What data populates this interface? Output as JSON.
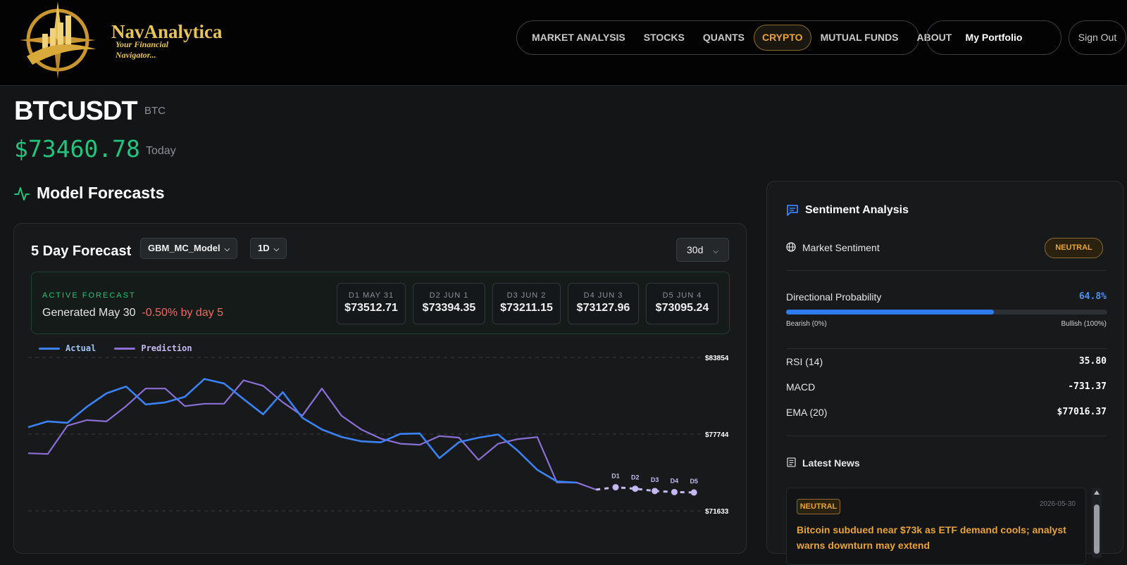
{
  "brand": {
    "name": "NavAnalytica",
    "tagline": "Your Financial Navigator..."
  },
  "nav": {
    "items": [
      "MARKET ANALYSIS",
      "STOCKS",
      "QUANTS",
      "CRYPTO",
      "MUTUAL FUNDS",
      "ABOUT"
    ],
    "active": "CRYPTO",
    "portfolio": "My Portfolio",
    "signout": "Sign Out"
  },
  "asset": {
    "symbol": "BTCUSDT",
    "base": "BTC",
    "price": "$73460.78",
    "price_label": "Today"
  },
  "forecasts": {
    "section_title": "Model Forecasts",
    "card_title": "5 Day Forecast",
    "model": "GBM_MC_Model",
    "interval": "1D",
    "range": "30d",
    "active_label": "ACTIVE FORECAST",
    "generated": "Generated May 30",
    "change": "-0.50% by day 5",
    "days": [
      {
        "label": "D1 MAY 31",
        "value": "$73512.71"
      },
      {
        "label": "D2 JUN 1",
        "value": "$73394.35"
      },
      {
        "label": "D3 JUN 2",
        "value": "$73211.15"
      },
      {
        "label": "D4 JUN 3",
        "value": "$73127.96"
      },
      {
        "label": "D5 JUN 4",
        "value": "$73095.24"
      }
    ],
    "legend": {
      "actual": "Actual",
      "prediction": "Prediction"
    }
  },
  "colors": {
    "actual": "#3b82f6",
    "prediction": "#8b6fd6",
    "forecast_points": "#c6b8f2",
    "positive": "#22c47e",
    "negative": "#f06a63",
    "accent": "#e8a33a"
  },
  "chart_data": {
    "type": "line",
    "y_ticks": [
      "$83854",
      "$77744",
      "$71633"
    ],
    "ylim": [
      71633,
      83854
    ],
    "grid": true,
    "legend_position": "top-left",
    "series": [
      {
        "name": "Actual",
        "values": [
          78299,
          78756,
          78647,
          79922,
          80996,
          81539,
          80110,
          80274,
          80717,
          82141,
          81779,
          80533,
          79325,
          81092,
          79050,
          78111,
          77521,
          77172,
          77085,
          77760,
          77793,
          75831,
          77102,
          77462,
          77717,
          76427,
          74900,
          73968,
          73879
        ]
      },
      {
        "name": "Prediction",
        "values": [
          76218,
          76164,
          78408,
          78866,
          78756,
          79976,
          81375,
          81375,
          79976,
          80165,
          80165,
          82030,
          81595,
          80285,
          79211,
          81375,
          79211,
          78124,
          77392,
          76982,
          76897,
          77592,
          77462,
          75687,
          76982,
          77347,
          77506,
          73891,
          73891,
          73319
        ]
      },
      {
        "name": "Forecast",
        "x": [
          "D1",
          "D2",
          "D3",
          "D4",
          "D5"
        ],
        "values": [
          73512.71,
          73394.35,
          73211.15,
          73127.96,
          73095.24
        ]
      }
    ]
  },
  "sentiment": {
    "title": "Sentiment Analysis",
    "market_label": "Market Sentiment",
    "market_value": "NEUTRAL",
    "prob_label": "Directional Probability",
    "prob_value": "64.8%",
    "prob_fraction": 0.648,
    "bearish": "Bearish (0%)",
    "bullish": "Bullish (100%)",
    "indicators": [
      {
        "label": "RSI (14)",
        "value": "35.80"
      },
      {
        "label": "MACD",
        "value": "-731.37"
      },
      {
        "label": "EMA (20)",
        "value": "$77016.37"
      }
    ],
    "news_title": "Latest News",
    "news": {
      "badge": "NEUTRAL",
      "date": "2026-05-30",
      "headline": "Bitcoin subdued near $73k as ETF demand cools; analyst warns downturn may extend"
    }
  }
}
